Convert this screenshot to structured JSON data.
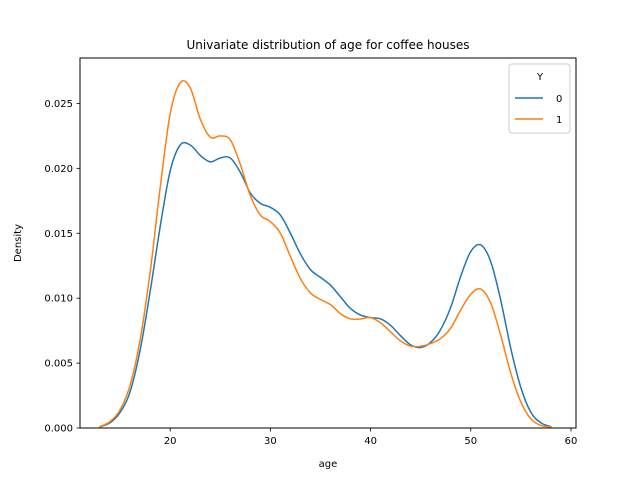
{
  "chart_data": {
    "type": "line",
    "title": "Univariate distribution of age for coffee houses",
    "xlabel": "age",
    "ylabel": "Density",
    "xlim": [
      11,
      60.5
    ],
    "ylim": [
      0,
      0.0285
    ],
    "xticks": [
      20,
      30,
      40,
      50,
      60
    ],
    "xtick_labels": [
      "20",
      "30",
      "40",
      "50",
      "60"
    ],
    "yticks": [
      0,
      0.005,
      0.01,
      0.015,
      0.02,
      0.025
    ],
    "ytick_labels": [
      "0.000",
      "0.005",
      "0.010",
      "0.015",
      "0.020",
      "0.025"
    ],
    "grid": false,
    "legend": {
      "title": "Y",
      "placement": "upper right",
      "entries": [
        "0",
        "1"
      ]
    },
    "series": [
      {
        "name": "0",
        "color": "#1f77b4",
        "x": [
          13,
          14,
          15,
          16,
          17,
          18,
          19,
          20,
          21,
          22,
          23,
          24,
          25,
          26,
          27,
          28,
          29,
          30,
          31,
          32,
          33,
          34,
          35,
          36,
          37,
          38,
          39,
          40,
          41,
          42,
          43,
          44,
          45,
          46,
          47,
          48,
          49,
          50,
          51,
          52,
          53,
          54,
          55,
          56,
          57,
          58
        ],
        "y": [
          0.0001,
          0.0004,
          0.0012,
          0.0028,
          0.006,
          0.0105,
          0.0155,
          0.0198,
          0.0218,
          0.0218,
          0.021,
          0.0205,
          0.0208,
          0.0208,
          0.0197,
          0.0181,
          0.0173,
          0.017,
          0.0164,
          0.015,
          0.0134,
          0.0122,
          0.0116,
          0.011,
          0.0101,
          0.0092,
          0.0087,
          0.0085,
          0.0084,
          0.0079,
          0.0071,
          0.0064,
          0.0062,
          0.0066,
          0.0076,
          0.0093,
          0.0117,
          0.0136,
          0.0141,
          0.0128,
          0.0098,
          0.0061,
          0.0031,
          0.0012,
          0.0004,
          0.0001
        ]
      },
      {
        "name": "1",
        "color": "#ff7f0e",
        "x": [
          13,
          14,
          15,
          16,
          17,
          18,
          19,
          20,
          21,
          22,
          23,
          24,
          25,
          26,
          27,
          28,
          29,
          30,
          31,
          32,
          33,
          34,
          35,
          36,
          37,
          38,
          39,
          40,
          41,
          42,
          43,
          44,
          45,
          46,
          47,
          48,
          49,
          50,
          51,
          52,
          53,
          54,
          55,
          56,
          57,
          58
        ],
        "y": [
          0.0001,
          0.0005,
          0.0014,
          0.0033,
          0.0068,
          0.012,
          0.0185,
          0.0242,
          0.0266,
          0.0262,
          0.0238,
          0.0224,
          0.0225,
          0.0222,
          0.0203,
          0.0179,
          0.0164,
          0.0159,
          0.015,
          0.0132,
          0.0115,
          0.0104,
          0.0099,
          0.0095,
          0.0088,
          0.0084,
          0.0084,
          0.0085,
          0.0081,
          0.0074,
          0.0067,
          0.0063,
          0.0063,
          0.0065,
          0.0069,
          0.0077,
          0.0091,
          0.0103,
          0.0107,
          0.0096,
          0.0071,
          0.0042,
          0.002,
          0.0007,
          0.0002,
          0.0001
        ]
      }
    ]
  }
}
